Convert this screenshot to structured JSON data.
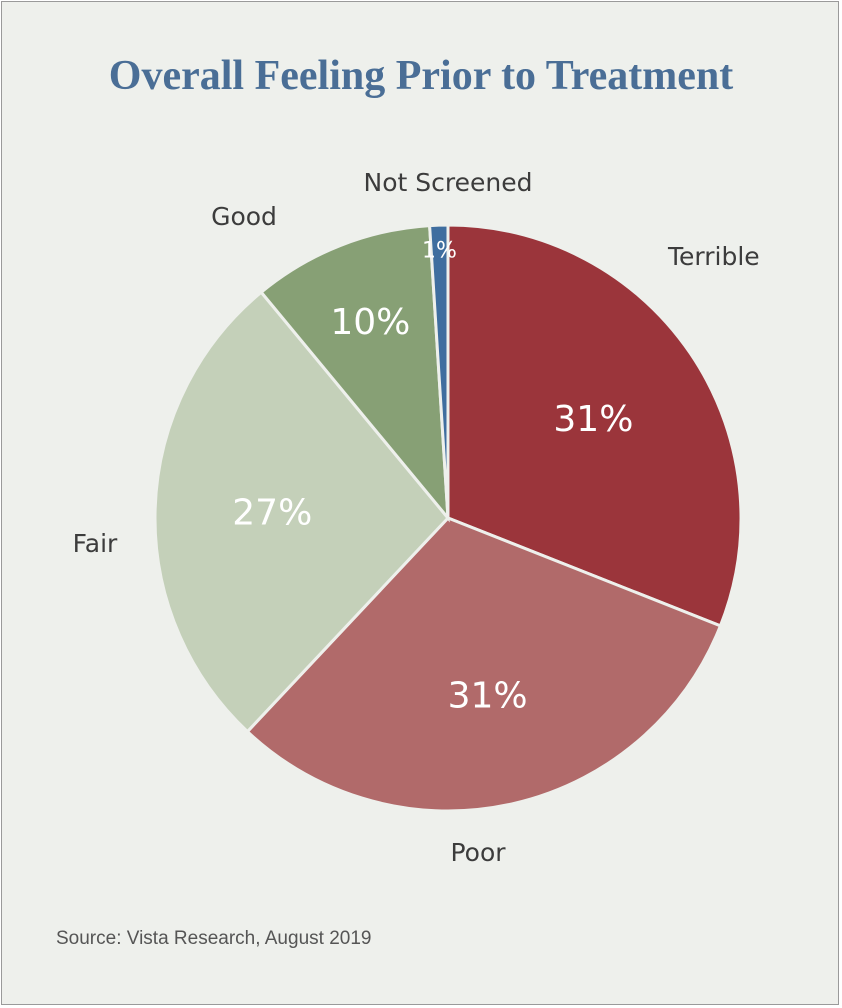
{
  "chart_data": {
    "type": "pie",
    "title": "Overall Feeling Prior to Treatment",
    "source": "Source: Vista Research, August 2019",
    "slices": [
      {
        "label": "Terrible",
        "value": 31,
        "data_label": "31%",
        "color": "#9b353b",
        "label_color": "#ffffff"
      },
      {
        "label": "Poor",
        "value": 31,
        "data_label": "31%",
        "color": "#b16a6a",
        "label_color": "#ffffff"
      },
      {
        "label": "Fair",
        "value": 27,
        "data_label": "27%",
        "color": "#c4d0b9",
        "label_color": "#ffffff"
      },
      {
        "label": "Good",
        "value": 10,
        "data_label": "10%",
        "color": "#87a075",
        "label_color": "#ffffff"
      },
      {
        "label": "Not Screened",
        "value": 1,
        "data_label": "1%",
        "color": "#3f6e9f",
        "label_color": "#ffffff"
      }
    ],
    "legend": "none"
  }
}
